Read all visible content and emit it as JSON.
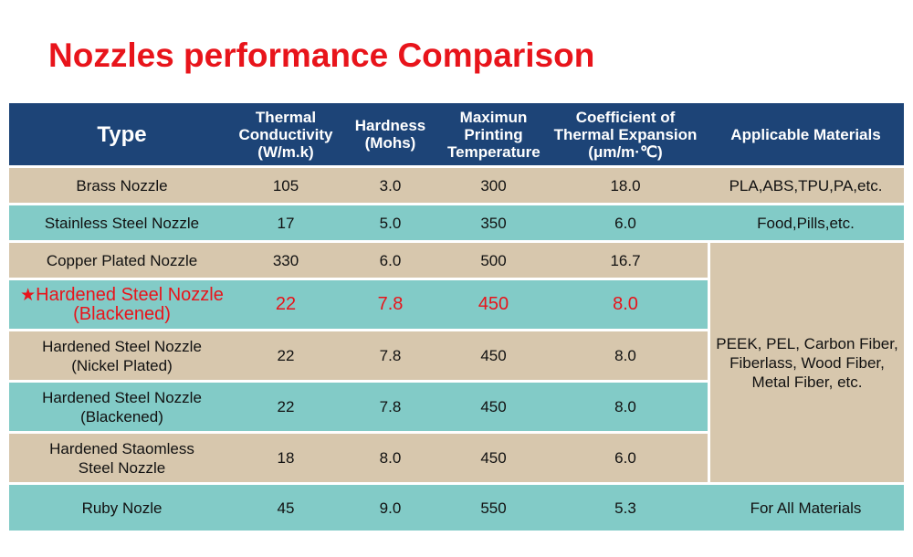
{
  "title": "Nozzles performance Comparison",
  "headers": {
    "type": "Type",
    "thermal_line1": "Thermal Conductivity",
    "thermal_line2": "(W/m.k)",
    "hardness_line1": "Hardness",
    "hardness_line2": "(Mohs)",
    "maxtemp_line1": "Maximun",
    "maxtemp_line2": "Printing",
    "maxtemp_line3": "Temperature",
    "cte_line1": "Coefficient of",
    "cte_line2": "Thermal Expansion",
    "cte_line3": "(μm/m·℃)",
    "materials": "Applicable Materials"
  },
  "rows": [
    {
      "name_line1": "Brass Nozzle",
      "name_line2": "",
      "thermal": "105",
      "hardness": "3.0",
      "max_temp": "300",
      "cte": "18.0",
      "materials": "PLA,ABS,TPU,PA,etc."
    },
    {
      "name_line1": "Stainless Steel Nozzle",
      "name_line2": "",
      "thermal": "17",
      "hardness": "5.0",
      "max_temp": "350",
      "cte": "6.0",
      "materials": "Food,Pills,etc."
    },
    {
      "name_line1": "Copper Plated Nozzle",
      "name_line2": "",
      "thermal": "330",
      "hardness": "6.0",
      "max_temp": "500",
      "cte": "16.7"
    },
    {
      "name_line1": "Hardened Steel Nozzle",
      "name_line2": "(Blackened)",
      "thermal": "22",
      "hardness": "7.8",
      "max_temp": "450",
      "cte": "8.0",
      "highlighted": true
    },
    {
      "name_line1": "Hardened Steel Nozzle",
      "name_line2": "(Nickel Plated)",
      "thermal": "22",
      "hardness": "7.8",
      "max_temp": "450",
      "cte": "8.0"
    },
    {
      "name_line1": "Hardened Steel Nozzle",
      "name_line2": "(Blackened)",
      "thermal": "22",
      "hardness": "7.8",
      "max_temp": "450",
      "cte": "8.0"
    },
    {
      "name_line1": "Hardened Staomless",
      "name_line2": "Steel Nozzle",
      "thermal": "18",
      "hardness": "8.0",
      "max_temp": "450",
      "cte": "6.0"
    },
    {
      "name_line1": "Ruby Nozle",
      "name_line2": "",
      "thermal": "45",
      "hardness": "9.0",
      "max_temp": "550",
      "cte": "5.3",
      "materials": "For All Materials"
    }
  ],
  "merged_materials": {
    "line1": "PEEK, PEL, Carbon Fiber,",
    "line2": "Fiberlass, Wood Fiber,",
    "line3": "Metal Fiber, etc."
  },
  "colors": {
    "title": "#e8141b",
    "header_bg": "#1d4477",
    "row_tan": "#d7c7ad",
    "row_teal": "#82cbc7",
    "highlight_text": "#e8141b"
  },
  "icons": {
    "highlight_marker": "star-icon"
  }
}
